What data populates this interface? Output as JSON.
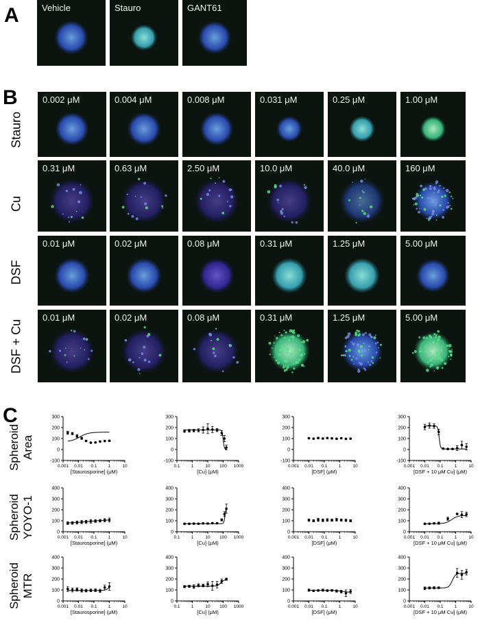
{
  "panel_labels": [
    "A",
    "B",
    "C"
  ],
  "panel_a": {
    "tiles": [
      {
        "label": "Vehicle",
        "shape": "round",
        "hue": "blue"
      },
      {
        "label": "Stauro",
        "shape": "small",
        "hue": "cyan"
      },
      {
        "label": "GANT61",
        "shape": "round",
        "hue": "blue"
      }
    ]
  },
  "panel_b": {
    "rows": [
      {
        "name": "Stauro",
        "tiles": [
          {
            "label": "0.002  μM",
            "shape": "round",
            "hue": "blue"
          },
          {
            "label": "0.004  μM",
            "shape": "round",
            "hue": "blue"
          },
          {
            "label": "0.008 μM",
            "shape": "round",
            "hue": "blue"
          },
          {
            "label": "0.031 μM",
            "shape": "small",
            "hue": "blue"
          },
          {
            "label": "0.25 μM",
            "shape": "small",
            "hue": "cyan"
          },
          {
            "label": "1.00 μM",
            "shape": "small",
            "hue": "green"
          }
        ]
      },
      {
        "name": "Cu",
        "tiles": [
          {
            "label": "0.31 μM",
            "shape": "dim",
            "hue": "purple"
          },
          {
            "label": "0.63 μM",
            "shape": "dim",
            "hue": "purple"
          },
          {
            "label": "2.50 μM",
            "shape": "dim",
            "hue": "purple"
          },
          {
            "label": "10.0 μM",
            "shape": "dim",
            "hue": "purple"
          },
          {
            "label": "40.0 μM",
            "shape": "dim",
            "hue": "blue"
          },
          {
            "label": "160 μM",
            "shape": "scatter",
            "hue": "blue"
          }
        ]
      },
      {
        "name": "DSF",
        "tiles": [
          {
            "label": "0.01  μM",
            "shape": "round",
            "hue": "blue"
          },
          {
            "label": "0.02 μM",
            "shape": "round",
            "hue": "blue"
          },
          {
            "label": "0.08 μM",
            "shape": "round",
            "hue": "purple"
          },
          {
            "label": "0.31 μM",
            "shape": "round",
            "hue": "cyan"
          },
          {
            "label": "1.25 μM",
            "shape": "round",
            "hue": "cyan"
          },
          {
            "label": "5.00 μM",
            "shape": "round",
            "hue": "blue"
          }
        ]
      },
      {
        "name": "DSF + Cu",
        "tiles": [
          {
            "label": "0.01  μM",
            "shape": "dim",
            "hue": "purple"
          },
          {
            "label": "0.02 μM",
            "shape": "dim",
            "hue": "purple"
          },
          {
            "label": "0.08 μM",
            "shape": "dim",
            "hue": "purple"
          },
          {
            "label": "0.31 μM",
            "shape": "scatter",
            "hue": "green"
          },
          {
            "label": "1.25 μM",
            "shape": "scatter",
            "hue": "blue"
          },
          {
            "label": "5.00 μM",
            "shape": "scatter",
            "hue": "green"
          }
        ]
      }
    ]
  },
  "panel_c": {
    "row_labels": [
      [
        "Spheroid",
        "Area"
      ],
      [
        "Spheroid",
        "YOYO-1"
      ],
      [
        "Spheroid",
        "MTR"
      ]
    ]
  },
  "chart_data": [
    {
      "type": "scatter",
      "row": 0,
      "col": 0,
      "xlabel": "[Staurosporine] (μM)",
      "xscale": "log",
      "xlim": [
        0.001,
        10
      ],
      "xticks": [
        0.001,
        0.01,
        0.1,
        1,
        10
      ],
      "xticklabels": [
        "0.001",
        "0.01",
        "0.1",
        "1",
        "10"
      ],
      "ylim": [
        -100,
        300
      ],
      "yticks": [
        -100,
        0,
        100,
        200,
        300
      ],
      "points": {
        "x": [
          0.002,
          0.004,
          0.008,
          0.016,
          0.031,
          0.0625,
          0.125,
          0.25,
          0.5,
          1.0
        ],
        "y": [
          152,
          145,
          122,
          102,
          78,
          62,
          64,
          73,
          77,
          79
        ],
        "err": [
          14,
          10,
          14,
          10,
          6,
          5,
          4,
          4,
          4,
          5
        ]
      },
      "curve": {
        "bottom": 70,
        "top": 158,
        "ec50": 0.012,
        "hill": 1.5
      }
    },
    {
      "type": "scatter",
      "row": 0,
      "col": 1,
      "xlabel": "[Cu] (μM)",
      "xscale": "log",
      "xlim": [
        0.1,
        1000
      ],
      "xticks": [
        0.1,
        1,
        10,
        100,
        1000
      ],
      "xticklabels": [
        "0.1",
        "1",
        "10",
        "100",
        "1000"
      ],
      "ylim": [
        -100,
        300
      ],
      "yticks": [
        -100,
        0,
        100,
        200,
        300
      ],
      "points": {
        "x": [
          0.31,
          0.63,
          1.25,
          2.5,
          5,
          10,
          20,
          40,
          80,
          120,
          160
        ],
        "y": [
          168,
          171,
          173,
          175,
          178,
          190,
          182,
          177,
          150,
          100,
          18
        ],
        "err": [
          12,
          12,
          12,
          14,
          28,
          45,
          28,
          14,
          22,
          28,
          22
        ]
      },
      "curve": {
        "bottom": 0,
        "top": 178,
        "ec50": 100,
        "hill": -12
      }
    },
    {
      "type": "scatter",
      "row": 0,
      "col": 2,
      "xlabel": "[DSF] (μM)",
      "xscale": "log",
      "xlim": [
        0.001,
        10
      ],
      "xticks": [
        0.001,
        0.01,
        0.1,
        1,
        10
      ],
      "xticklabels": [
        "0.001",
        "0.01",
        "0.1",
        "1",
        "10"
      ],
      "ylim": [
        -100,
        300
      ],
      "yticks": [
        -100,
        0,
        100,
        200,
        300
      ],
      "points": {
        "x": [
          0.01,
          0.02,
          0.04,
          0.08,
          0.156,
          0.31,
          0.625,
          1.25,
          2.5,
          5
        ],
        "y": [
          103,
          99,
          104,
          100,
          104,
          101,
          98,
          103,
          97,
          99
        ],
        "err": [
          4,
          5,
          8,
          6,
          6,
          5,
          5,
          4,
          4,
          5
        ]
      },
      "curve": null
    },
    {
      "type": "scatter",
      "row": 0,
      "col": 3,
      "xlabel": "[DSF + 10 μM Cu] (μM)",
      "xscale": "log",
      "xlim": [
        0.001,
        10
      ],
      "xticks": [
        0.001,
        0.01,
        0.1,
        1,
        10
      ],
      "xticklabels": [
        "0.001",
        "0.01",
        "0.1",
        "1",
        "10"
      ],
      "ylim": [
        -100,
        300
      ],
      "yticks": [
        -100,
        0,
        100,
        200,
        300
      ],
      "points": {
        "x": [
          0.01,
          0.02,
          0.04,
          0.08,
          0.156,
          0.31,
          0.625,
          1.25,
          2.5,
          5
        ],
        "y": [
          205,
          218,
          213,
          160,
          8,
          5,
          5,
          12,
          40,
          25
        ],
        "err": [
          25,
          24,
          20,
          25,
          5,
          5,
          5,
          22,
          35,
          28
        ]
      },
      "curve": {
        "bottom": 5,
        "top": 215,
        "ec50": 0.085,
        "hill": -10
      }
    },
    {
      "type": "scatter",
      "row": 1,
      "col": 0,
      "xlabel": "[Staurosporine] (μM)",
      "xscale": "log",
      "xlim": [
        0.001,
        10
      ],
      "xticks": [
        0.001,
        0.01,
        0.1,
        1,
        10
      ],
      "xticklabels": [
        "0.001",
        "0.01",
        "0.1",
        "1",
        "10"
      ],
      "ylim": [
        0,
        400
      ],
      "yticks": [
        0,
        100,
        200,
        300,
        400
      ],
      "points": {
        "x": [
          0.002,
          0.004,
          0.008,
          0.016,
          0.031,
          0.0625,
          0.125,
          0.25,
          0.5,
          1.0
        ],
        "y": [
          78,
          80,
          84,
          88,
          90,
          95,
          97,
          100,
          105,
          107
        ],
        "err": [
          12,
          12,
          14,
          14,
          14,
          16,
          12,
          12,
          14,
          18
        ]
      },
      "curve": {
        "bottom": 76,
        "top": 112,
        "ec50": 0.05,
        "hill": 0.6
      }
    },
    {
      "type": "scatter",
      "row": 1,
      "col": 1,
      "xlabel": "[Cu] (μM)",
      "xscale": "log",
      "xlim": [
        0.1,
        1000
      ],
      "xticks": [
        0.1,
        1,
        10,
        100,
        1000
      ],
      "xticklabels": [
        "0.1",
        "1",
        "10",
        "100",
        "1000"
      ],
      "ylim": [
        0,
        400
      ],
      "yticks": [
        0,
        100,
        200,
        300,
        400
      ],
      "points": {
        "x": [
          0.31,
          0.63,
          1.25,
          2.5,
          5,
          10,
          20,
          40,
          80,
          120,
          160
        ],
        "y": [
          72,
          72,
          74,
          73,
          76,
          75,
          78,
          77,
          108,
          160,
          210
        ],
        "err": [
          5,
          5,
          6,
          5,
          6,
          6,
          6,
          6,
          10,
          22,
          42
        ]
      },
      "curve": {
        "bottom": 73,
        "top": 220,
        "ec50": 130,
        "hill": 12
      }
    },
    {
      "type": "scatter",
      "row": 1,
      "col": 2,
      "xlabel": "[DSF] (μM)",
      "xscale": "log",
      "xlim": [
        0.001,
        10
      ],
      "xticks": [
        0.001,
        0.01,
        0.1,
        1,
        10
      ],
      "xticklabels": [
        "0.001",
        "0.01",
        "0.1",
        "1",
        "10"
      ],
      "ylim": [
        0,
        400
      ],
      "yticks": [
        0,
        100,
        200,
        300,
        400
      ],
      "points": {
        "x": [
          0.01,
          0.02,
          0.04,
          0.08,
          0.156,
          0.31,
          0.625,
          1.25,
          2.5,
          5
        ],
        "y": [
          105,
          100,
          108,
          104,
          107,
          105,
          110,
          106,
          104,
          100
        ],
        "err": [
          10,
          10,
          14,
          12,
          12,
          10,
          12,
          10,
          10,
          10
        ]
      },
      "curve": null
    },
    {
      "type": "scatter",
      "row": 1,
      "col": 3,
      "xlabel": "[DSF + 10 μM Cu] (μM)",
      "xscale": "log",
      "xlim": [
        0.001,
        10
      ],
      "xticks": [
        0.001,
        0.01,
        0.1,
        1,
        10
      ],
      "xticklabels": [
        "0.001",
        "0.01",
        "0.1",
        "1",
        "10"
      ],
      "ylim": [
        0,
        400
      ],
      "yticks": [
        0,
        100,
        200,
        300,
        400
      ],
      "points": {
        "x": [
          0.01,
          0.02,
          0.04,
          0.08,
          0.31,
          1.25,
          2.5,
          5
        ],
        "y": [
          72,
          73,
          76,
          78,
          118,
          162,
          155,
          158
        ],
        "err": [
          5,
          5,
          6,
          10,
          14,
          6,
          28,
          20
        ]
      },
      "curve": {
        "bottom": 73,
        "top": 148,
        "ec50": 0.55,
        "hill": 2.2
      }
    },
    {
      "type": "scatter",
      "row": 2,
      "col": 0,
      "xlabel": "[Staurosporine] (μM)",
      "xscale": "log",
      "xlim": [
        0.001,
        10
      ],
      "xticks": [
        0.001,
        0.01,
        0.1,
        1,
        10
      ],
      "xticklabels": [
        "0.001",
        "0.01",
        "0.1",
        "1",
        "10"
      ],
      "ylim": [
        0,
        400
      ],
      "yticks": [
        0,
        100,
        200,
        300,
        400
      ],
      "points": {
        "x": [
          0.002,
          0.004,
          0.008,
          0.016,
          0.031,
          0.0625,
          0.125,
          0.25,
          0.5,
          1.0
        ],
        "y": [
          108,
          100,
          104,
          95,
          94,
          96,
          97,
          92,
          122,
          132
        ],
        "err": [
          22,
          18,
          15,
          14,
          12,
          12,
          12,
          14,
          22,
          35
        ]
      },
      "curve": {
        "bottom": 95,
        "top": 140,
        "ec50": 0.9,
        "hill": 4
      }
    },
    {
      "type": "scatter",
      "row": 2,
      "col": 1,
      "xlabel": "[Cu] (μM)",
      "xscale": "log",
      "xlim": [
        0.1,
        1000
      ],
      "xticks": [
        0.1,
        1,
        10,
        100,
        1000
      ],
      "xticklabels": [
        "0.1",
        "1",
        "10",
        "100",
        "1000"
      ],
      "ylim": [
        0,
        400
      ],
      "yticks": [
        0,
        100,
        200,
        300,
        400
      ],
      "points": {
        "x": [
          0.31,
          0.63,
          1.25,
          2.5,
          5,
          10,
          20,
          40,
          80,
          160
        ],
        "y": [
          130,
          133,
          130,
          142,
          140,
          152,
          138,
          148,
          180,
          198
        ],
        "err": [
          10,
          10,
          16,
          14,
          12,
          22,
          40,
          30,
          20,
          10
        ]
      },
      "curve": {
        "bottom": 135,
        "top": 195,
        "ec50": 70,
        "hill": 4
      }
    },
    {
      "type": "scatter",
      "row": 2,
      "col": 2,
      "xlabel": "[DSF] (μM)",
      "xscale": "log",
      "xlim": [
        0.001,
        10
      ],
      "xticks": [
        0.001,
        0.01,
        0.1,
        1,
        10
      ],
      "xticklabels": [
        "0.001",
        "0.01",
        "0.1",
        "1",
        "10"
      ],
      "ylim": [
        0,
        400
      ],
      "yticks": [
        0,
        100,
        200,
        300,
        400
      ],
      "points": {
        "x": [
          0.01,
          0.02,
          0.04,
          0.08,
          0.156,
          0.31,
          0.625,
          1.25,
          2.5,
          5
        ],
        "y": [
          98,
          92,
          95,
          98,
          94,
          96,
          90,
          85,
          70,
          86
        ],
        "err": [
          10,
          8,
          8,
          10,
          8,
          8,
          10,
          12,
          30,
          18
        ]
      },
      "curve": {
        "bottom": 78,
        "top": 96,
        "ec50": 1.5,
        "hill": -2
      }
    },
    {
      "type": "scatter",
      "row": 2,
      "col": 3,
      "xlabel": "[DSF + 10 μM Cu] (μM)",
      "xscale": "log",
      "xlim": [
        0.001,
        10
      ],
      "xticks": [
        0.001,
        0.01,
        0.1,
        1,
        10
      ],
      "xticklabels": [
        "0.001",
        "0.01",
        "0.1",
        "1",
        "10"
      ],
      "ylim": [
        0,
        400
      ],
      "yticks": [
        0,
        100,
        200,
        300,
        400
      ],
      "points": {
        "x": [
          0.01,
          0.02,
          0.04,
          0.08,
          1.25,
          2.5,
          5
        ],
        "y": [
          115,
          118,
          120,
          120,
          255,
          238,
          262
        ],
        "err": [
          12,
          10,
          10,
          8,
          40,
          40,
          25
        ]
      },
      "curve": {
        "bottom": 118,
        "top": 252,
        "ec50": 0.6,
        "hill": 4
      }
    }
  ]
}
